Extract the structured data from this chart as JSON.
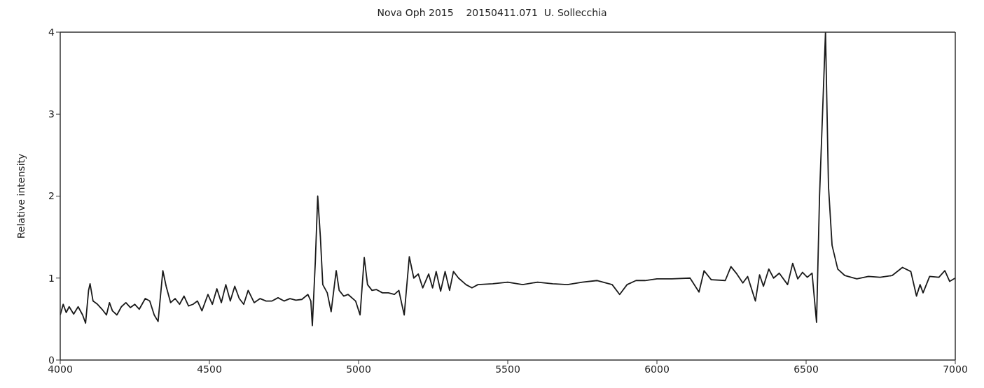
{
  "chart_data": {
    "type": "line",
    "title": "Nova Oph 2015    20150411.071  U. Sollecchia",
    "ylabel": "Relative intensity",
    "xlim": [
      4000,
      7000
    ],
    "xticks": [
      4000,
      4500,
      5000,
      5500,
      6000,
      6500,
      7000
    ],
    "ylim": [
      0,
      4
    ],
    "yticks": [
      0,
      1,
      2,
      3,
      4
    ],
    "marker": "none",
    "line_style": "solid",
    "series": [
      {
        "color": "#1a1a1a",
        "x": [
          4000,
          4010,
          4020,
          4030,
          4045,
          4060,
          4075,
          4085,
          4095,
          4100,
          4110,
          4125,
          4140,
          4155,
          4165,
          4175,
          4190,
          4205,
          4220,
          4235,
          4250,
          4265,
          4285,
          4300,
          4315,
          4328,
          4344,
          4355,
          4370,
          4385,
          4400,
          4415,
          4430,
          4445,
          4460,
          4475,
          4495,
          4510,
          4525,
          4540,
          4555,
          4570,
          4585,
          4600,
          4615,
          4630,
          4650,
          4670,
          4690,
          4710,
          4730,
          4750,
          4770,
          4790,
          4810,
          4830,
          4840,
          4845,
          4855,
          4863,
          4872,
          4880,
          4895,
          4908,
          4925,
          4935,
          4950,
          4965,
          4990,
          5005,
          5019,
          5030,
          5045,
          5060,
          5080,
          5100,
          5120,
          5135,
          5145,
          5153,
          5170,
          5185,
          5200,
          5215,
          5235,
          5248,
          5260,
          5275,
          5290,
          5305,
          5318,
          5335,
          5360,
          5380,
          5400,
          5450,
          5500,
          5550,
          5600,
          5650,
          5700,
          5750,
          5800,
          5850,
          5875,
          5900,
          5930,
          5960,
          6000,
          6050,
          6111,
          6141,
          6158,
          6182,
          6229,
          6248,
          6268,
          6288,
          6304,
          6330,
          6344,
          6357,
          6375,
          6391,
          6410,
          6438,
          6455,
          6472,
          6488,
          6504,
          6520,
          6535,
          6545,
          6565,
          6575,
          6587,
          6606,
          6630,
          6670,
          6709,
          6748,
          6788,
          6823,
          6851,
          6870,
          6882,
          6892,
          6914,
          6945,
          6965,
          6981,
          7000
        ],
        "values": [
          0.55,
          0.68,
          0.58,
          0.65,
          0.56,
          0.65,
          0.55,
          0.45,
          0.85,
          0.93,
          0.72,
          0.68,
          0.62,
          0.55,
          0.7,
          0.6,
          0.55,
          0.65,
          0.7,
          0.64,
          0.68,
          0.62,
          0.75,
          0.72,
          0.55,
          0.47,
          1.09,
          0.9,
          0.7,
          0.75,
          0.68,
          0.78,
          0.66,
          0.68,
          0.72,
          0.6,
          0.8,
          0.68,
          0.87,
          0.7,
          0.92,
          0.72,
          0.9,
          0.75,
          0.68,
          0.85,
          0.7,
          0.75,
          0.72,
          0.72,
          0.76,
          0.72,
          0.75,
          0.73,
          0.74,
          0.8,
          0.72,
          0.42,
          1.2,
          2.0,
          1.5,
          0.92,
          0.82,
          0.59,
          1.09,
          0.85,
          0.78,
          0.8,
          0.72,
          0.55,
          1.25,
          0.92,
          0.85,
          0.86,
          0.82,
          0.82,
          0.8,
          0.85,
          0.68,
          0.55,
          1.26,
          1.0,
          1.05,
          0.88,
          1.05,
          0.88,
          1.08,
          0.84,
          1.08,
          0.85,
          1.08,
          1.0,
          0.92,
          0.88,
          0.92,
          0.93,
          0.95,
          0.92,
          0.95,
          0.93,
          0.92,
          0.95,
          0.97,
          0.92,
          0.8,
          0.92,
          0.97,
          0.97,
          0.99,
          0.99,
          1.0,
          0.83,
          1.09,
          0.98,
          0.97,
          1.14,
          1.05,
          0.94,
          1.02,
          0.72,
          1.04,
          0.9,
          1.11,
          1.0,
          1.06,
          0.92,
          1.18,
          0.99,
          1.07,
          1.01,
          1.06,
          0.46,
          2.0,
          4.0,
          2.12,
          1.4,
          1.11,
          1.03,
          0.99,
          1.02,
          1.01,
          1.03,
          1.13,
          1.08,
          0.78,
          0.92,
          0.82,
          1.02,
          1.01,
          1.09,
          0.96,
          1.0
        ]
      }
    ]
  }
}
